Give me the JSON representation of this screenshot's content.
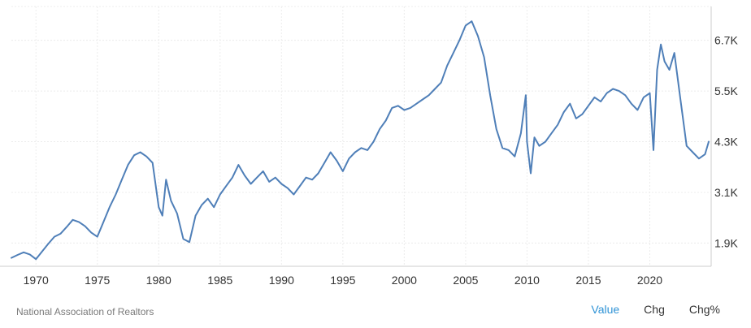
{
  "chart_data": {
    "type": "line",
    "title": "",
    "xlabel": "",
    "ylabel": "",
    "x_ticks": [
      1970,
      1975,
      1980,
      1985,
      1990,
      1995,
      2000,
      2005,
      2010,
      2015,
      2020
    ],
    "y_ticks": [
      {
        "value": 1.9,
        "label": "1.9K"
      },
      {
        "value": 3.1,
        "label": "3.1K"
      },
      {
        "value": 4.3,
        "label": "4.3K"
      },
      {
        "value": 5.5,
        "label": "5.5K"
      },
      {
        "value": 6.7,
        "label": "6.7K"
      }
    ],
    "xlim": [
      1968,
      2025
    ],
    "ylim": [
      1.35,
      7.5
    ],
    "grid": true,
    "series": [
      {
        "color": "#4f7fb8",
        "points": [
          [
            1968.0,
            1.55
          ],
          [
            1968.5,
            1.62
          ],
          [
            1969.0,
            1.68
          ],
          [
            1969.5,
            1.63
          ],
          [
            1970.0,
            1.52
          ],
          [
            1970.5,
            1.7
          ],
          [
            1971.0,
            1.88
          ],
          [
            1971.5,
            2.05
          ],
          [
            1972.0,
            2.12
          ],
          [
            1972.5,
            2.28
          ],
          [
            1973.0,
            2.45
          ],
          [
            1973.5,
            2.4
          ],
          [
            1974.0,
            2.3
          ],
          [
            1974.5,
            2.15
          ],
          [
            1975.0,
            2.05
          ],
          [
            1975.5,
            2.4
          ],
          [
            1976.0,
            2.75
          ],
          [
            1976.5,
            3.05
          ],
          [
            1977.0,
            3.4
          ],
          [
            1977.5,
            3.75
          ],
          [
            1978.0,
            3.98
          ],
          [
            1978.5,
            4.05
          ],
          [
            1979.0,
            3.95
          ],
          [
            1979.5,
            3.8
          ],
          [
            1980.0,
            2.75
          ],
          [
            1980.3,
            2.55
          ],
          [
            1980.6,
            3.4
          ],
          [
            1981.0,
            2.9
          ],
          [
            1981.5,
            2.6
          ],
          [
            1982.0,
            2.0
          ],
          [
            1982.5,
            1.92
          ],
          [
            1983.0,
            2.55
          ],
          [
            1983.5,
            2.8
          ],
          [
            1984.0,
            2.95
          ],
          [
            1984.5,
            2.75
          ],
          [
            1985.0,
            3.05
          ],
          [
            1985.5,
            3.25
          ],
          [
            1986.0,
            3.45
          ],
          [
            1986.5,
            3.75
          ],
          [
            1987.0,
            3.5
          ],
          [
            1987.5,
            3.3
          ],
          [
            1988.0,
            3.45
          ],
          [
            1988.5,
            3.6
          ],
          [
            1989.0,
            3.35
          ],
          [
            1989.5,
            3.45
          ],
          [
            1990.0,
            3.3
          ],
          [
            1990.5,
            3.2
          ],
          [
            1991.0,
            3.05
          ],
          [
            1991.5,
            3.25
          ],
          [
            1992.0,
            3.45
          ],
          [
            1992.5,
            3.4
          ],
          [
            1993.0,
            3.55
          ],
          [
            1993.5,
            3.8
          ],
          [
            1994.0,
            4.05
          ],
          [
            1994.5,
            3.85
          ],
          [
            1995.0,
            3.6
          ],
          [
            1995.5,
            3.9
          ],
          [
            1996.0,
            4.05
          ],
          [
            1996.5,
            4.15
          ],
          [
            1997.0,
            4.1
          ],
          [
            1997.5,
            4.3
          ],
          [
            1998.0,
            4.6
          ],
          [
            1998.5,
            4.8
          ],
          [
            1999.0,
            5.1
          ],
          [
            1999.5,
            5.15
          ],
          [
            2000.0,
            5.05
          ],
          [
            2000.5,
            5.1
          ],
          [
            2001.0,
            5.2
          ],
          [
            2001.5,
            5.3
          ],
          [
            2002.0,
            5.4
          ],
          [
            2002.5,
            5.55
          ],
          [
            2003.0,
            5.7
          ],
          [
            2003.5,
            6.1
          ],
          [
            2004.0,
            6.4
          ],
          [
            2004.5,
            6.7
          ],
          [
            2005.0,
            7.05
          ],
          [
            2005.5,
            7.15
          ],
          [
            2006.0,
            6.8
          ],
          [
            2006.5,
            6.3
          ],
          [
            2007.0,
            5.4
          ],
          [
            2007.5,
            4.6
          ],
          [
            2008.0,
            4.15
          ],
          [
            2008.5,
            4.1
          ],
          [
            2009.0,
            3.95
          ],
          [
            2009.5,
            4.5
          ],
          [
            2009.9,
            5.4
          ],
          [
            2010.0,
            4.3
          ],
          [
            2010.3,
            3.55
          ],
          [
            2010.6,
            4.4
          ],
          [
            2011.0,
            4.2
          ],
          [
            2011.5,
            4.3
          ],
          [
            2012.0,
            4.5
          ],
          [
            2012.5,
            4.7
          ],
          [
            2013.0,
            5.0
          ],
          [
            2013.5,
            5.2
          ],
          [
            2014.0,
            4.85
          ],
          [
            2014.5,
            4.95
          ],
          [
            2015.0,
            5.15
          ],
          [
            2015.5,
            5.35
          ],
          [
            2016.0,
            5.25
          ],
          [
            2016.5,
            5.45
          ],
          [
            2017.0,
            5.55
          ],
          [
            2017.5,
            5.5
          ],
          [
            2018.0,
            5.4
          ],
          [
            2018.5,
            5.2
          ],
          [
            2019.0,
            5.05
          ],
          [
            2019.5,
            5.35
          ],
          [
            2020.0,
            5.45
          ],
          [
            2020.3,
            4.1
          ],
          [
            2020.6,
            6.0
          ],
          [
            2020.9,
            6.6
          ],
          [
            2021.2,
            6.2
          ],
          [
            2021.6,
            6.0
          ],
          [
            2022.0,
            6.4
          ],
          [
            2022.5,
            5.3
          ],
          [
            2023.0,
            4.2
          ],
          [
            2023.5,
            4.05
          ],
          [
            2024.0,
            3.9
          ],
          [
            2024.5,
            4.0
          ],
          [
            2024.8,
            4.3
          ]
        ]
      }
    ]
  },
  "footer": {
    "source": "National Association of Realtors",
    "tabs": [
      "Value",
      "Chg",
      "Chg%"
    ],
    "active_tab": "Value",
    "active_color": "#2f93d6"
  }
}
